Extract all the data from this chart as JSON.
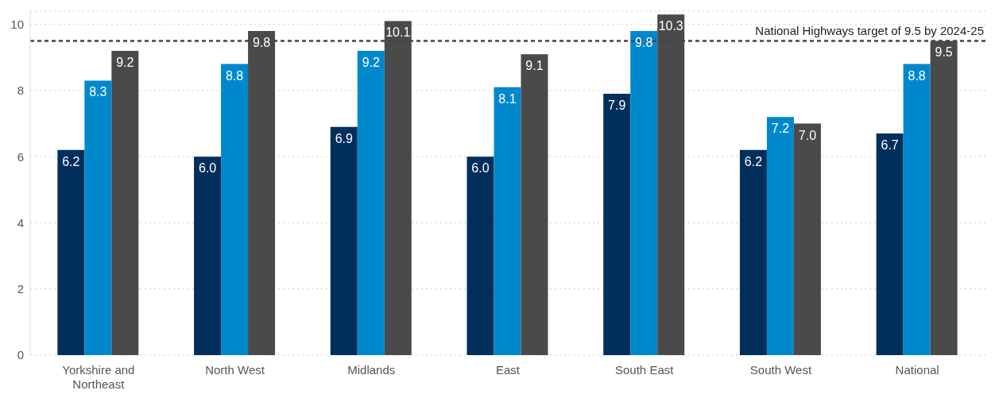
{
  "chart_data": {
    "type": "bar",
    "categories": [
      "Yorkshire and Northeast",
      "North West",
      "Midlands",
      "East",
      "South East",
      "South West",
      "National"
    ],
    "series": [
      {
        "color": "#002f5c",
        "values": [
          6.2,
          6.0,
          6.9,
          6.0,
          7.9,
          6.2,
          6.7
        ],
        "value_labels": [
          "6.2",
          "6.0",
          "6.9",
          "6.0",
          "7.9",
          "6.2",
          "6.7"
        ]
      },
      {
        "color": "#0088cc",
        "values": [
          8.3,
          8.8,
          9.2,
          8.1,
          9.8,
          7.2,
          8.8
        ],
        "value_labels": [
          "8.3",
          "8.8",
          "9.2",
          "8.1",
          "9.8",
          "7.2",
          "8.8"
        ]
      },
      {
        "color": "#4a4a4a",
        "values": [
          9.2,
          9.8,
          10.1,
          9.1,
          10.3,
          7.0,
          9.5
        ],
        "value_labels": [
          "9.2",
          "9.8",
          "10.1",
          "9.1",
          "10.3",
          "7.0",
          "9.5"
        ]
      }
    ],
    "ylim": [
      0,
      10.4
    ],
    "yticks": [
      0,
      2,
      4,
      6,
      8,
      10
    ],
    "grid": "y",
    "legend": false,
    "ref_lines": [
      {
        "axis": "y",
        "value": 9.5,
        "label": "National Highways target of 9.5 by 2024-25",
        "color": "#444444",
        "line_style": "dashed"
      }
    ]
  }
}
